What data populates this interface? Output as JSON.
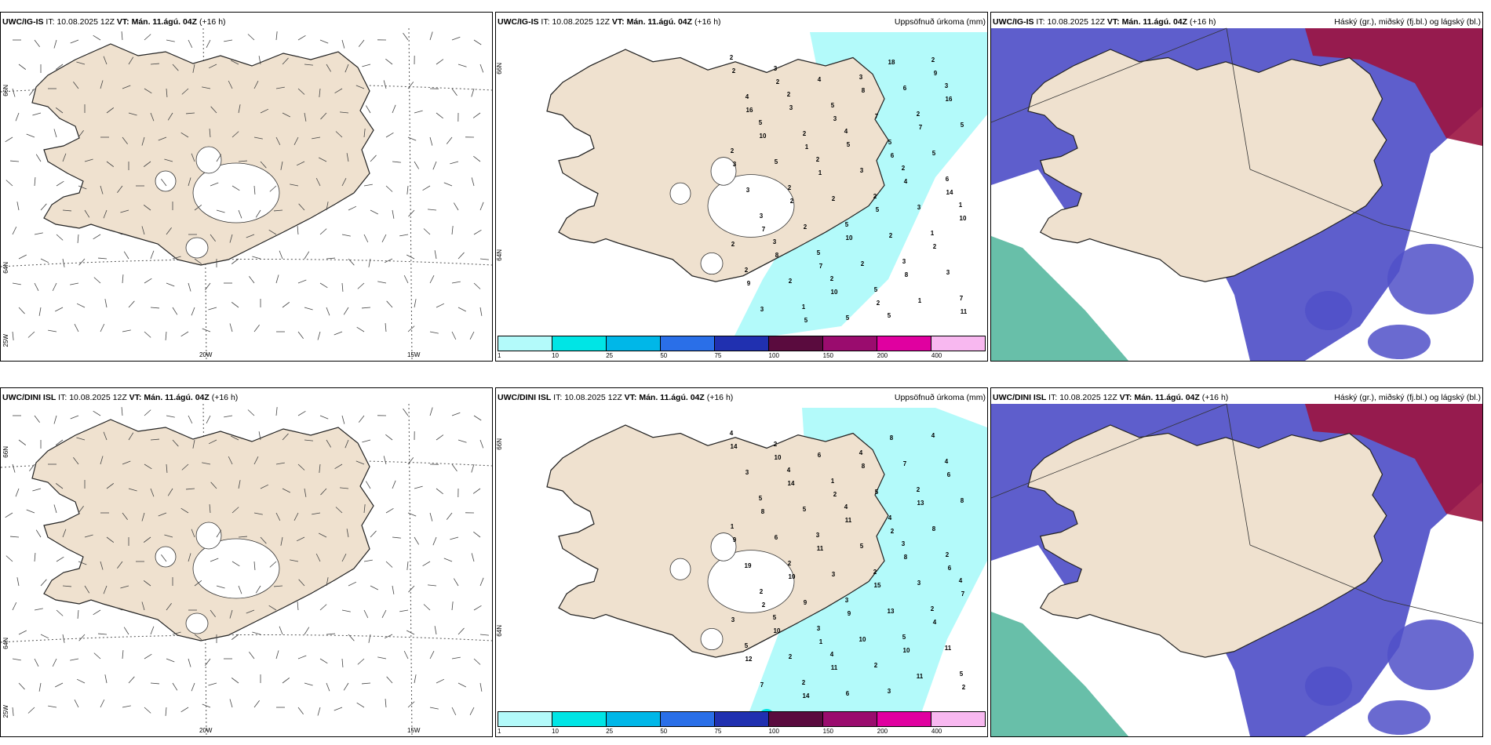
{
  "rows": [
    {
      "model": "UWC/IG-IS",
      "it_label": "IT:",
      "it_value": "10.08.2025 12Z",
      "vt_label": "VT:",
      "vt_value": "Mán. 11.ágú. 04Z",
      "lead": "(+16 h)",
      "precip_title": "Uppsöfnuð úrkoma (mm)",
      "cloud_title": "Háský (gr.), miðský (fj.bl.) og lágský (bl.)",
      "precip_values": [
        "2",
        "2",
        "4",
        "2",
        "1",
        "3",
        "2",
        "5",
        "3",
        "5",
        "2",
        "2",
        "1",
        "2",
        "1",
        "3",
        "2",
        "2",
        "2",
        "5",
        "3",
        "7",
        "3",
        "5",
        "5",
        "6",
        "3",
        "5",
        "5",
        "2",
        "4",
        "2",
        "3",
        "3",
        "2",
        "2",
        "5",
        "6",
        "5",
        "5",
        "2",
        "2",
        "3",
        "3",
        "4",
        "7",
        "5",
        "3",
        "2",
        "2",
        "1",
        "2",
        "3",
        "5",
        "4",
        "10",
        "8",
        "10",
        "18",
        "16",
        "10",
        "1",
        "5",
        "2",
        "9",
        "5",
        "8",
        "7",
        "3",
        "2",
        "10",
        "8",
        "11",
        "2",
        "3",
        "6",
        "14",
        "7",
        "7",
        "2",
        "9",
        "16",
        "1"
      ]
    },
    {
      "model": "UWC/DINI ISL",
      "it_label": "IT:",
      "it_value": "10.08.2025 12Z",
      "vt_label": "VT:",
      "vt_value": "Mán. 11.ágú. 04Z",
      "lead": "(+16 h)",
      "precip_title": "Uppsöfnuð úrkoma (mm)",
      "cloud_title": "Háský (gr.), miðský (fj.bl.) og lágský (bl.)",
      "precip_values": [
        "4",
        "4",
        "4",
        "3",
        "4",
        "5",
        "4",
        "3",
        "4",
        "5",
        "3",
        "2",
        "2",
        "5",
        "2",
        "4",
        "2",
        "1",
        "2",
        "3",
        "5",
        "5",
        "2",
        "1",
        "4",
        "2",
        "2",
        "3",
        "2",
        "4",
        "3",
        "5",
        "5",
        "3",
        "3",
        "2",
        "6",
        "7",
        "8",
        "6",
        "3",
        "13",
        "11",
        "7",
        "6",
        "5",
        "8",
        "19",
        "9",
        "10",
        "11",
        "14",
        "14",
        "11",
        "8",
        "7",
        "10",
        "11",
        "8",
        "6",
        "8",
        "11",
        "15",
        "4",
        "12",
        "14",
        "8",
        "13",
        "9",
        "10",
        "9",
        "10",
        "2",
        "10",
        "2",
        "2",
        "6",
        "2",
        "1"
      ]
    }
  ],
  "grid_labels": {
    "lat_66": "66N",
    "lat_64": "64N",
    "lon_25": "25W",
    "lon_20": "20W",
    "lon_15": "15W"
  },
  "legend": {
    "labels": [
      "1",
      "10",
      "25",
      "50",
      "75",
      "100",
      "150",
      "200",
      "400"
    ],
    "colors": [
      "#b3fafa",
      "#00e5e5",
      "#00b7e8",
      "#2a6fe8",
      "#2030b0",
      "#5a0b3e",
      "#9a0c6e",
      "#e000a0",
      "#f8b8f0"
    ]
  },
  "colors": {
    "land": "#efe1cf",
    "precip_light": "#b3fafa",
    "precip_medium": "#00e5e5",
    "cloud_low": "#5050c8",
    "cloud_mid": "#4eb49a",
    "cloud_high": "#9c1440"
  }
}
